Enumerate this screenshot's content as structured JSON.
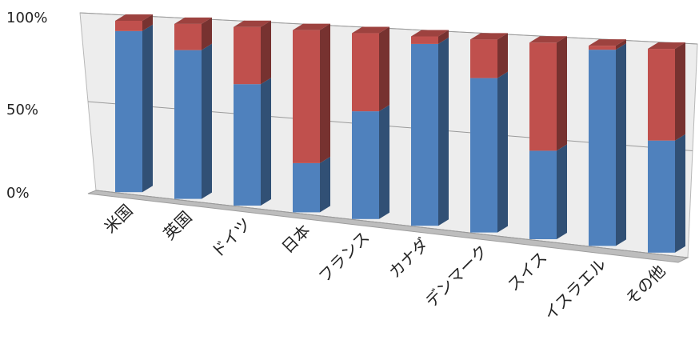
{
  "chart_data": {
    "type": "bar",
    "stacked": true,
    "percent_stacked": true,
    "three_d": true,
    "categories": [
      "米国",
      "英国",
      "ドイツ",
      "日本",
      "フランス",
      "カナダ",
      "デンマーク",
      "スイス",
      "イスラエル",
      "その他"
    ],
    "series": [
      {
        "values": [
          94,
          85,
          68,
          27,
          58,
          96,
          80,
          45,
          98,
          55
        ],
        "color": "#4f81bd"
      },
      {
        "values": [
          6,
          15,
          32,
          73,
          42,
          4,
          20,
          55,
          2,
          45
        ],
        "color": "#c0504d"
      }
    ],
    "yticks": [
      "0%",
      "50%",
      "100%"
    ],
    "ylim": [
      0,
      100
    ],
    "grid": true,
    "legend": "none"
  }
}
